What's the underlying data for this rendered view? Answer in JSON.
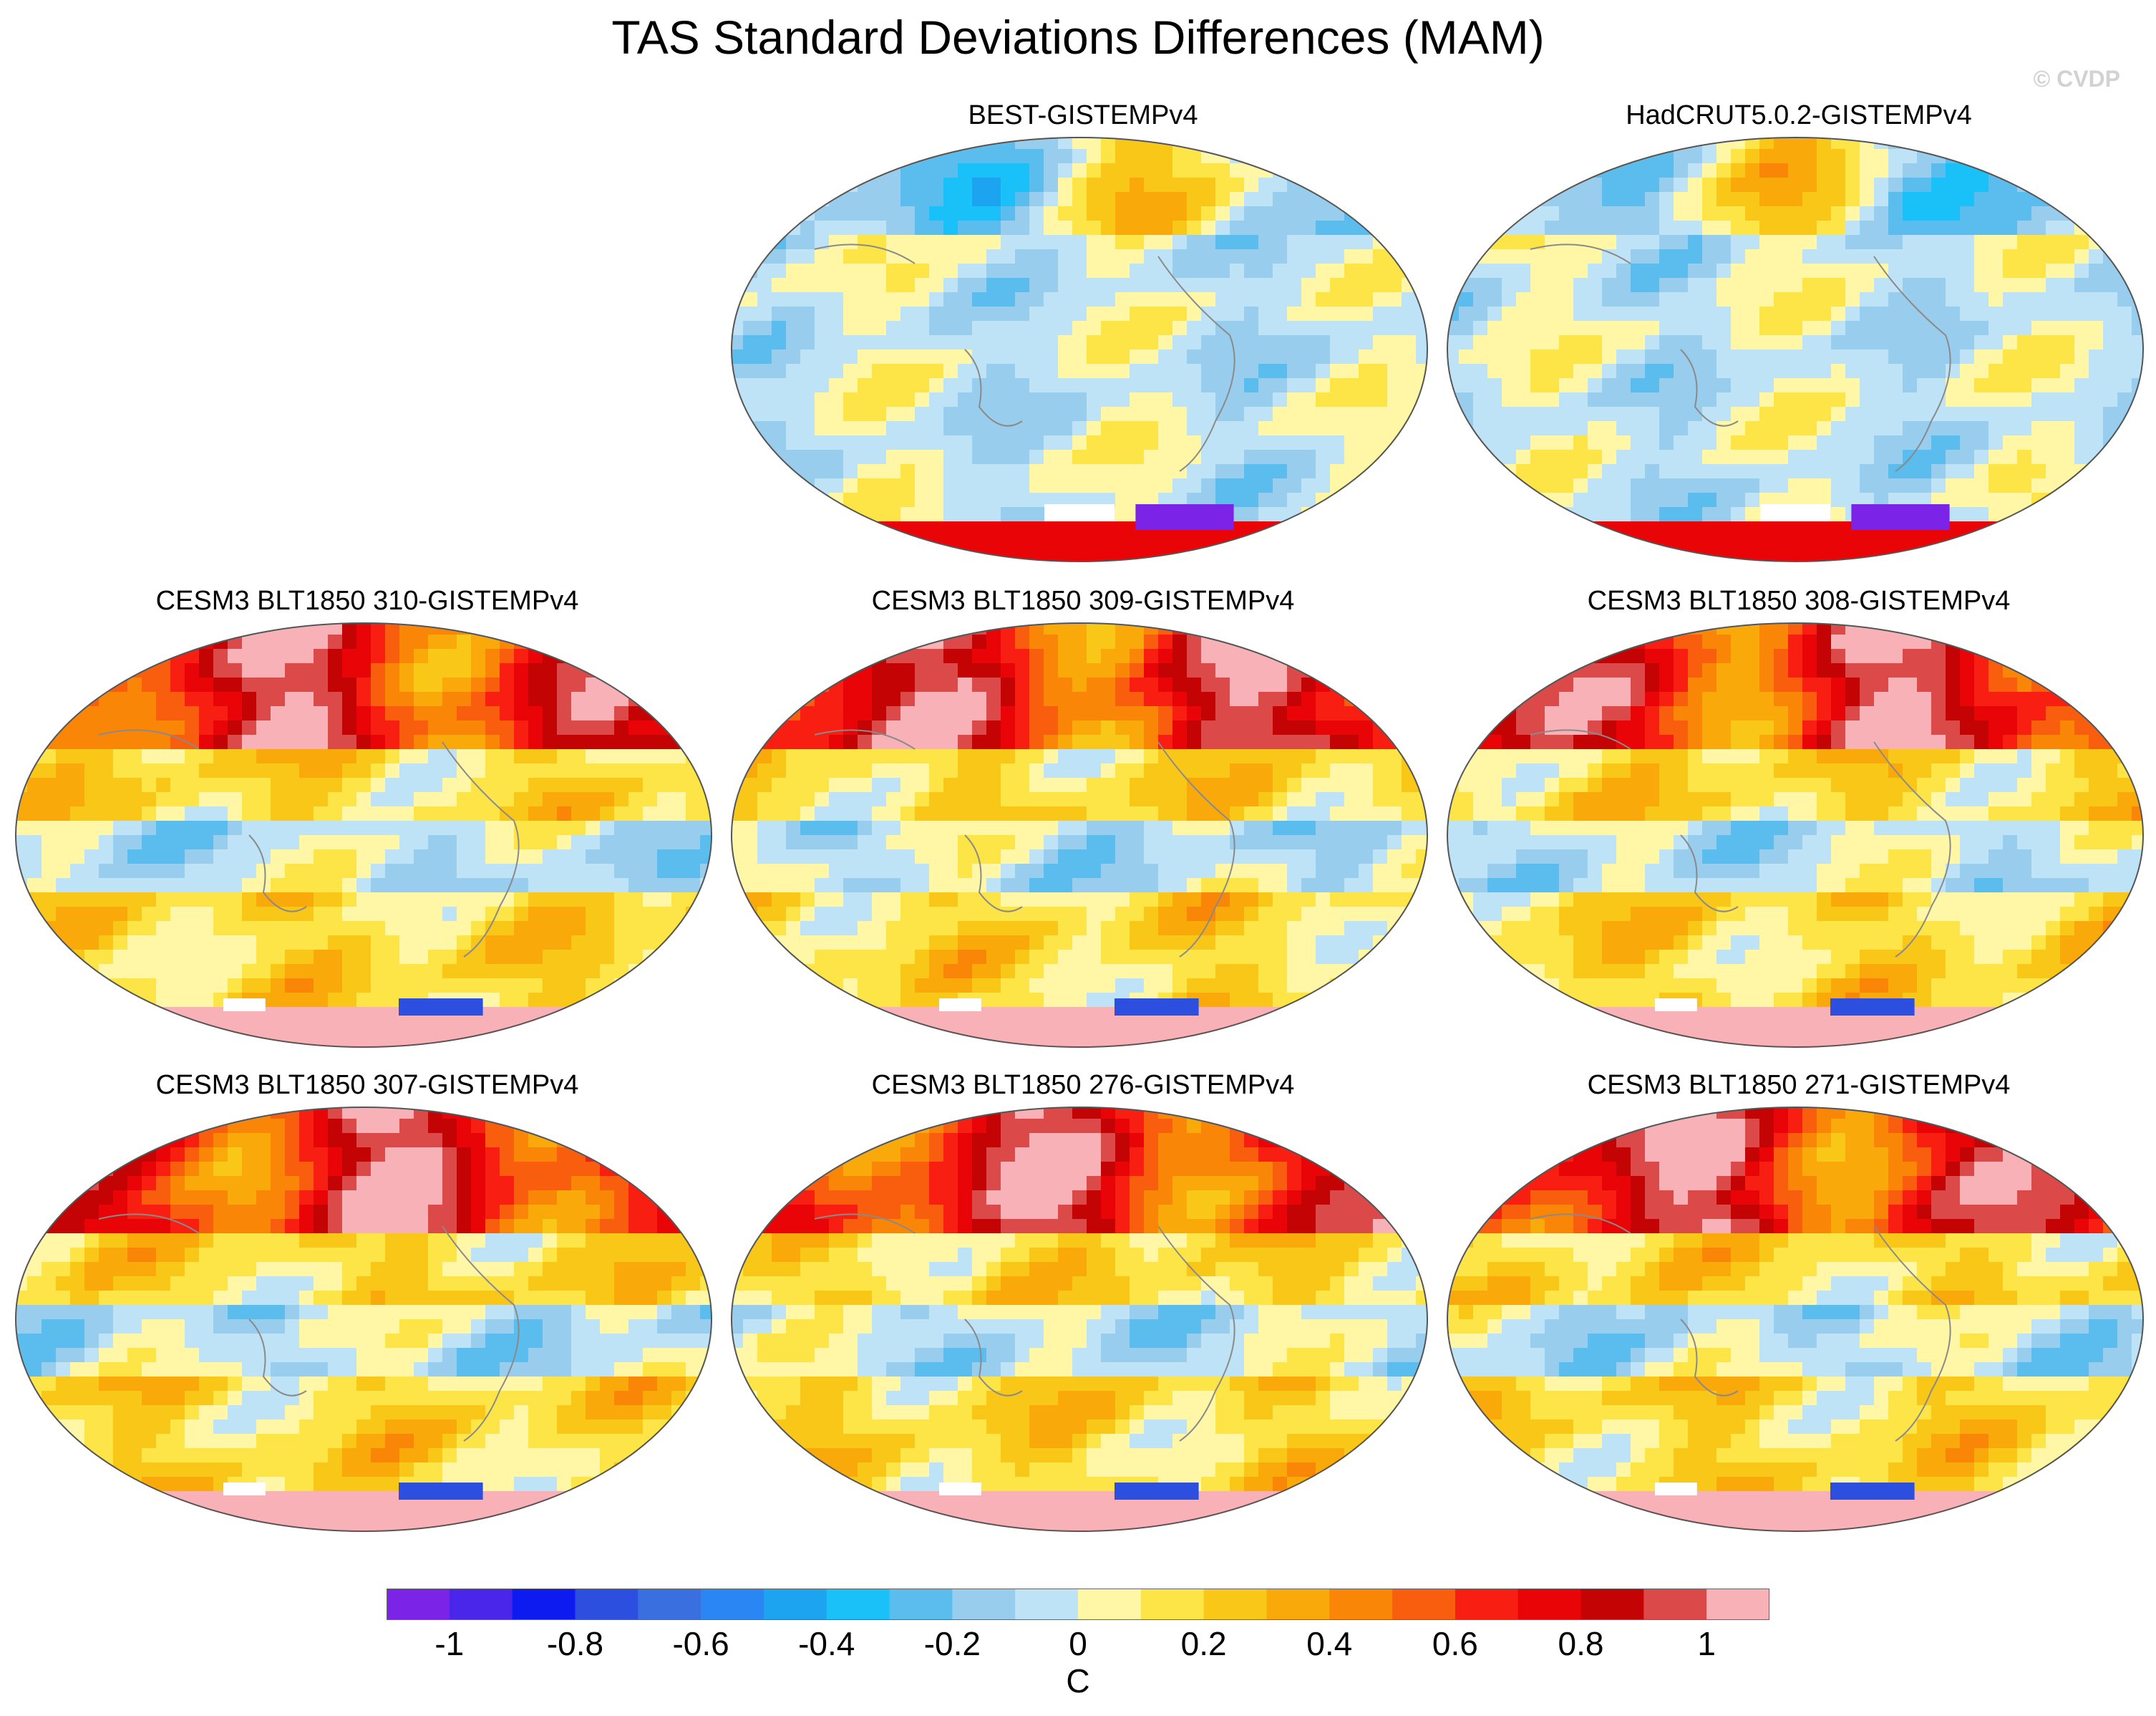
{
  "title": "TAS Standard Deviations Differences (MAM)",
  "watermark": "© CVDP",
  "panels": [
    {
      "id": "best",
      "label": "BEST-GISTEMPv4",
      "row": 0,
      "col": 1,
      "pattern": "obs1"
    },
    {
      "id": "had",
      "label": "HadCRUT5.0.2-GISTEMPv4",
      "row": 0,
      "col": 2,
      "pattern": "obs2"
    },
    {
      "id": "m310",
      "label": "CESM3 BLT1850 310-GISTEMPv4",
      "row": 1,
      "col": 0,
      "pattern": "model"
    },
    {
      "id": "m309",
      "label": "CESM3 BLT1850 309-GISTEMPv4",
      "row": 1,
      "col": 1,
      "pattern": "model"
    },
    {
      "id": "m308",
      "label": "CESM3 BLT1850 308-GISTEMPv4",
      "row": 1,
      "col": 2,
      "pattern": "model"
    },
    {
      "id": "m307",
      "label": "CESM3 BLT1850 307-GISTEMPv4",
      "row": 2,
      "col": 0,
      "pattern": "model"
    },
    {
      "id": "m276",
      "label": "CESM3 BLT1850 276-GISTEMPv4",
      "row": 2,
      "col": 1,
      "pattern": "model"
    },
    {
      "id": "m271",
      "label": "CESM3 BLT1850 271-GISTEMPv4",
      "row": 2,
      "col": 2,
      "pattern": "model"
    }
  ],
  "colorbar": {
    "colors": [
      "#7b24e8",
      "#4a25ea",
      "#0d1af0",
      "#2c4fe0",
      "#3a6fe0",
      "#2a86f2",
      "#1da4f0",
      "#19c1f8",
      "#5bbcee",
      "#98cdee",
      "#bfe3f6",
      "#fff7a6",
      "#fde447",
      "#f9c718",
      "#f9a90a",
      "#fa8607",
      "#f95e0f",
      "#f91e12",
      "#e80407",
      "#c40404",
      "#dc4949",
      "#f8b2b7"
    ],
    "tick_labels": [
      "-1",
      "-0.8",
      "-0.6",
      "-0.4",
      "-0.2",
      "0",
      "0.2",
      "0.4",
      "0.6",
      "0.8",
      "1"
    ],
    "tick_values": [
      -1,
      -0.8,
      -0.6,
      -0.4,
      -0.2,
      0,
      0.2,
      0.4,
      0.6,
      0.8,
      1
    ],
    "range": [
      -1.1,
      1.1
    ],
    "units": "C"
  }
}
